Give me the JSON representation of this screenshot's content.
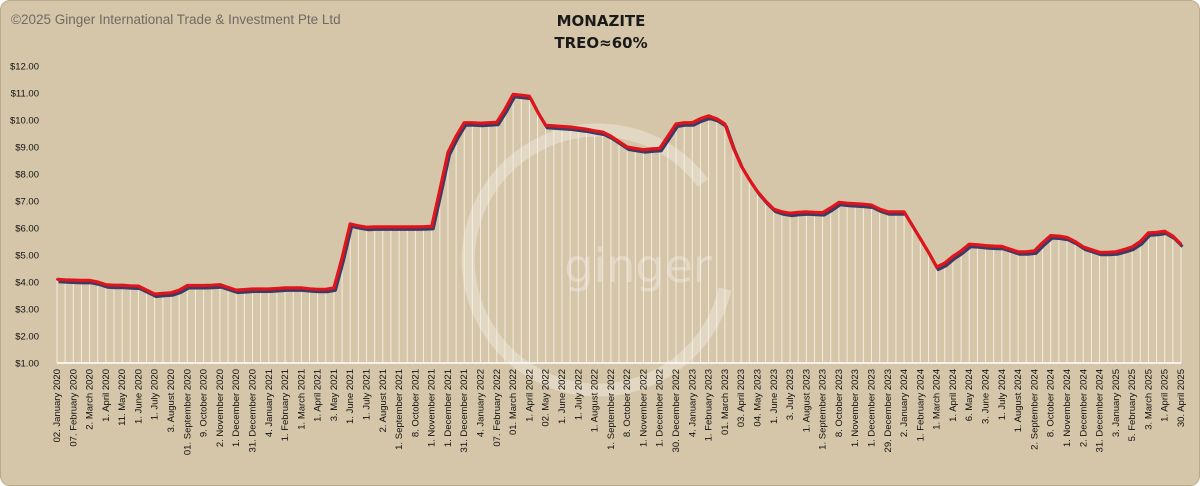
{
  "copyright": "©2025 Ginger International Trade & Investment Pte Ltd",
  "watermark": "ginger",
  "colors": {
    "background": "#d6c6a9",
    "line": "#e0141b",
    "shadow": "#3d3a66",
    "drop": "#f7f3ea"
  },
  "chart_data": {
    "type": "line",
    "title": "MONAZITE",
    "subtitle": "TREO≈60%",
    "ylim": [
      1,
      12
    ],
    "y_ticks": [
      "$1.00",
      "$2.00",
      "$3.00",
      "$4.00",
      "$5.00",
      "$6.00",
      "$7.00",
      "$8.00",
      "$9.00",
      "$10.00",
      "$11.00",
      "$12.00"
    ],
    "x_tick_labels": [
      "02. January 2020",
      "07. February 2020",
      "2. March 2020",
      "1. April 2020",
      "11. May 2020",
      "1. June 2020",
      "1. July 2020",
      "3. August 2020",
      "01. September 2020",
      "9. October 2020",
      "2. November 2020",
      "1. December 2020",
      "31. December 2020",
      "4. January 2021",
      "1. February 2021",
      "1. March 2021",
      "1. April 2021",
      "3. May 2021",
      "1. June 2021",
      "1. July 2021",
      "2. August 2021",
      "1. September 2021",
      "8. October 2021",
      "1. November 2021",
      "1. December 2021",
      "31. December 2021",
      "4. January 2022",
      "07. February 2022",
      "01. March 2022",
      "1. April 2022",
      "02. May 2022",
      "1. June 2022",
      "1. July 2022",
      "1. August 2022",
      "1. September 2022",
      "8. October 2022",
      "1. November 2022",
      "1. December 2022",
      "30. December 2022",
      "4. January 2023",
      "1. February 2023",
      "01. March 2023",
      "03. April 2023",
      "04. May 2023",
      "1. June 2023",
      "3. July 2023",
      "1. August 2023",
      "1. September 2023",
      "8. October 2023",
      "1. November 2023",
      "1. December 2023",
      "29. December 2023",
      "2. January 2024",
      "1. February 2024",
      "1. March 2024",
      "1. April 2024",
      "6. May 2024",
      "3. June 2024",
      "1. July 2024",
      "1. August 2024",
      "2. September 2024",
      "8. October 2024",
      "1. November 2024",
      "2. December 2024",
      "31. December 2024",
      "3. January 2025",
      "5. February 2025",
      "3. March 2025",
      "1. April 2025",
      "30. April 2025"
    ],
    "x_tick_positions": [
      0,
      2,
      4,
      6,
      8,
      10,
      12,
      14,
      16,
      18,
      20,
      22,
      24,
      26,
      28,
      30,
      32,
      34,
      36,
      38,
      40,
      42,
      44,
      46,
      48,
      50,
      52,
      54,
      56,
      58,
      60,
      62,
      64,
      66,
      68,
      70,
      72,
      74,
      76,
      78,
      80,
      82,
      84,
      86,
      88,
      90,
      92,
      94,
      96,
      98,
      100,
      102,
      104,
      106,
      108,
      110,
      112,
      114,
      116,
      118,
      120,
      122,
      124,
      126,
      128,
      130,
      132,
      134,
      136,
      138
    ],
    "series": [
      {
        "values": [
          4.1,
          4.08,
          4.07,
          4.06,
          4.06,
          4.0,
          3.9,
          3.88,
          3.88,
          3.86,
          3.85,
          3.7,
          3.55,
          3.58,
          3.6,
          3.7,
          3.87,
          3.87,
          3.87,
          3.88,
          3.9,
          3.8,
          3.7,
          3.72,
          3.74,
          3.74,
          3.74,
          3.76,
          3.78,
          3.78,
          3.78,
          3.75,
          3.73,
          3.73,
          3.78,
          4.9,
          6.15,
          6.08,
          6.03,
          6.04,
          6.04,
          6.04,
          6.04,
          6.04,
          6.04,
          6.05,
          6.06,
          7.4,
          8.8,
          9.4,
          9.9,
          9.9,
          9.88,
          9.9,
          9.92,
          10.4,
          10.95,
          10.92,
          10.88,
          10.3,
          9.8,
          9.78,
          9.76,
          9.74,
          9.7,
          9.66,
          9.6,
          9.55,
          9.4,
          9.2,
          9.0,
          8.95,
          8.9,
          8.93,
          8.95,
          9.4,
          9.85,
          9.9,
          9.9,
          10.05,
          10.15,
          10.05,
          9.85,
          9.0,
          8.3,
          7.8,
          7.35,
          7.0,
          6.7,
          6.6,
          6.55,
          6.58,
          6.6,
          6.58,
          6.57,
          6.75,
          6.95,
          6.92,
          6.9,
          6.88,
          6.85,
          6.7,
          6.6,
          6.6,
          6.6,
          6.1,
          5.6,
          5.1,
          4.55,
          4.7,
          4.95,
          5.15,
          5.4,
          5.38,
          5.35,
          5.33,
          5.32,
          5.22,
          5.12,
          5.12,
          5.15,
          5.45,
          5.72,
          5.7,
          5.65,
          5.5,
          5.3,
          5.2,
          5.1,
          5.1,
          5.12,
          5.2,
          5.3,
          5.5,
          5.82,
          5.84,
          5.88,
          5.7,
          5.4
        ]
      }
    ]
  }
}
